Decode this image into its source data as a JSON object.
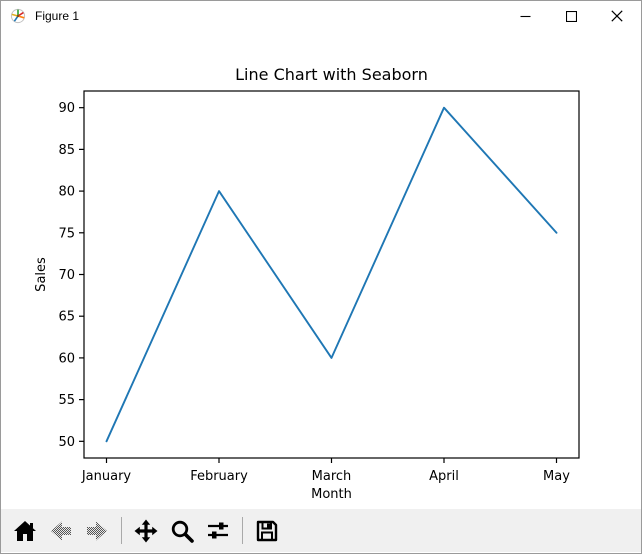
{
  "window": {
    "title": "Figure 1",
    "app_icon": "matplotlib-logo-icon",
    "controls": [
      {
        "name": "minimize",
        "icon": "minimize-icon"
      },
      {
        "name": "maximize",
        "icon": "maximize-icon"
      },
      {
        "name": "close",
        "icon": "close-icon"
      }
    ]
  },
  "chart_data": {
    "type": "line",
    "title": "Line Chart with Seaborn",
    "xlabel": "Month",
    "ylabel": "Sales",
    "categories": [
      "January",
      "February",
      "March",
      "April",
      "May"
    ],
    "values": [
      50,
      80,
      60,
      90,
      75
    ],
    "yticks": [
      50,
      55,
      60,
      65,
      70,
      75,
      80,
      85,
      90
    ],
    "ylim": [
      48,
      92
    ],
    "x_margin": 0.2,
    "grid": false,
    "legend": "none",
    "line_color": "#1f77b4",
    "axes_color": "#000000",
    "background": "#ffffff"
  },
  "toolbar": {
    "buttons": [
      {
        "name": "home",
        "icon": "home-icon",
        "enabled": true
      },
      {
        "name": "back",
        "icon": "back-arrow-icon",
        "enabled": false
      },
      {
        "name": "forward",
        "icon": "forward-arrow-icon",
        "enabled": false
      },
      {
        "name": "pan",
        "icon": "pan-arrows-icon",
        "enabled": true
      },
      {
        "name": "zoom",
        "icon": "zoom-magnifier-icon",
        "enabled": true
      },
      {
        "name": "configure-subplots",
        "icon": "sliders-icon",
        "enabled": true
      },
      {
        "name": "save",
        "icon": "save-floppy-icon",
        "enabled": true
      }
    ],
    "message": ""
  },
  "colors": {
    "titlebar_bg": "#ffffff",
    "canvas_bg": "#ffffff",
    "toolbar_bg": "#f0f0f0",
    "window_border": "#9a9a9a",
    "line": "#1f77b4"
  }
}
